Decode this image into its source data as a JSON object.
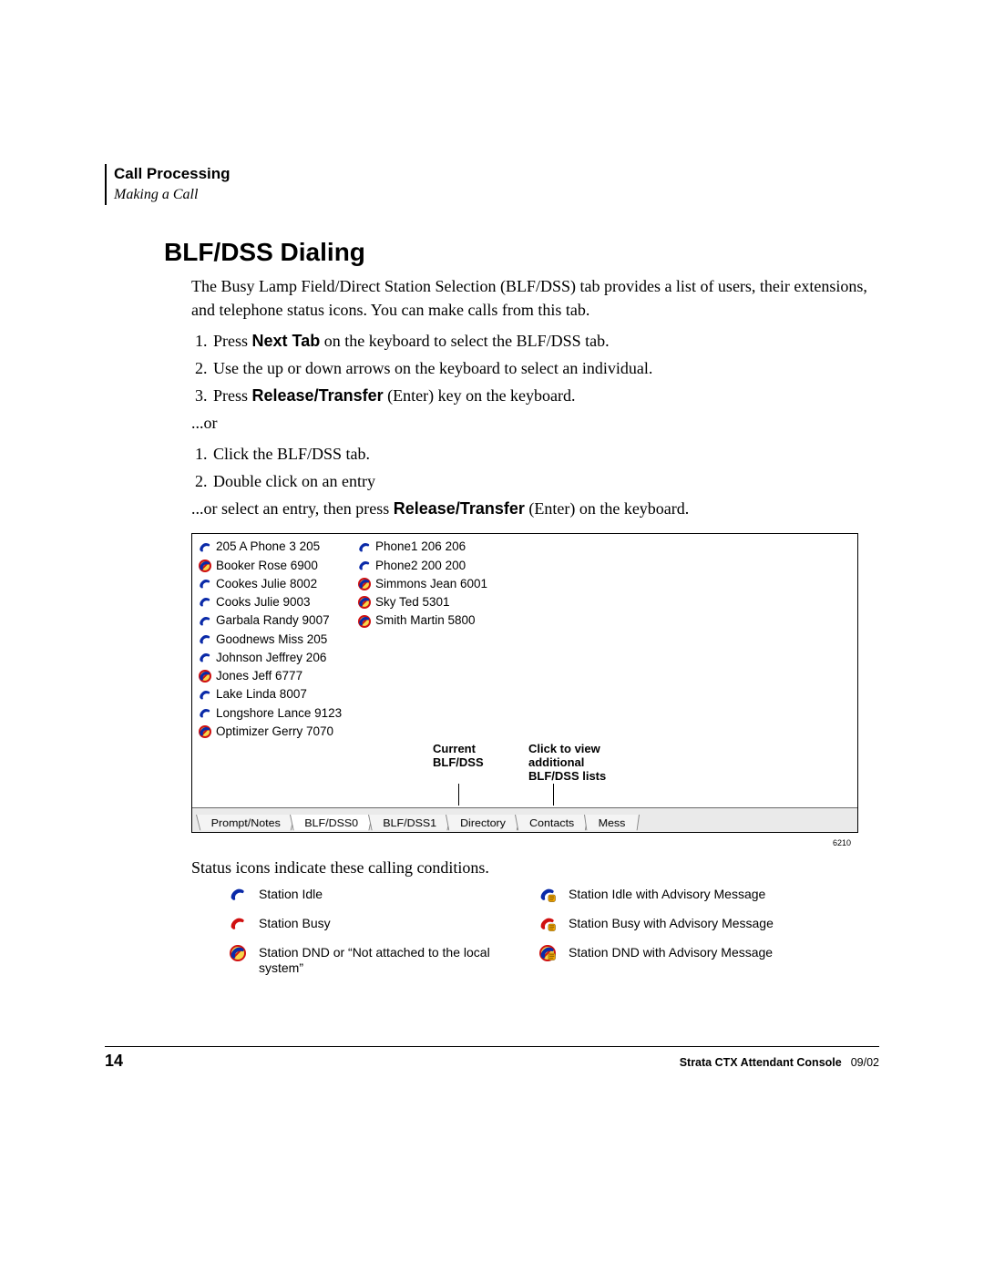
{
  "header": {
    "section": "Call Processing",
    "subsection": "Making a Call"
  },
  "title": "BLF/DSS Dialing",
  "intro": "The Busy Lamp Field/Direct Station Selection (BLF/DSS) tab provides a list of users, their extensions, and telephone status icons. You can make calls from this tab.",
  "steps1": {
    "s1_a": "Press ",
    "s1_b": "Next Tab",
    "s1_c": " on the keyboard to select the BLF/DSS tab.",
    "s2": "Use the up or down arrows on the keyboard to select an individual.",
    "s3_a": "Press ",
    "s3_b": "Release/Transfer",
    "s3_c": " (Enter) key on the keyboard."
  },
  "or_text": "...or",
  "steps2": {
    "s1": "Click the BLF/DSS tab.",
    "s2": "Double click on an entry"
  },
  "or_select_a": "...or select an entry, then press ",
  "or_select_b": "Release/Transfer",
  "or_select_c": " (Enter) on the keyboard.",
  "figure": {
    "col1": [
      {
        "icon": "idle",
        "label": "205 A Phone 3 205"
      },
      {
        "icon": "dnd",
        "label": "Booker Rose 6900"
      },
      {
        "icon": "idle",
        "label": "Cookes Julie 8002"
      },
      {
        "icon": "idle",
        "label": "Cooks Julie 9003"
      },
      {
        "icon": "idle",
        "label": "Garbala Randy 9007"
      },
      {
        "icon": "idle",
        "label": "Goodnews Miss 205"
      },
      {
        "icon": "idle",
        "label": "Johnson Jeffrey 206"
      },
      {
        "icon": "dnd",
        "label": "Jones Jeff 6777"
      },
      {
        "icon": "idle",
        "label": "Lake Linda 8007"
      },
      {
        "icon": "idle",
        "label": "Longshore Lance 9123"
      },
      {
        "icon": "dnd",
        "label": "Optimizer Gerry 7070"
      }
    ],
    "col2": [
      {
        "icon": "idle",
        "label": "Phone1 206 206"
      },
      {
        "icon": "idle",
        "label": "Phone2 200 200"
      },
      {
        "icon": "dnd",
        "label": "Simmons Jean 6001"
      },
      {
        "icon": "dnd",
        "label": "Sky Ted 5301"
      },
      {
        "icon": "dnd",
        "label": "Smith Martin 5800"
      }
    ],
    "callout_current_l1": "Current",
    "callout_current_l2": "BLF/DSS",
    "callout_click_l1": "Click to view",
    "callout_click_l2": "additional",
    "callout_click_l3": "BLF/DSS lists",
    "tabs": [
      "Prompt/Notes",
      "BLF/DSS0",
      "BLF/DSS1",
      "Directory",
      "Contacts",
      "Mess"
    ],
    "active_tab_index": 1,
    "fignum": "6210"
  },
  "status_lead": "Status icons indicate these calling conditions.",
  "legend": {
    "rows": [
      {
        "leftIcon": "idle",
        "left": "Station Idle",
        "rightIcon": "idle_adv",
        "right": "Station Idle with Advisory Message"
      },
      {
        "leftIcon": "busy",
        "left": "Station Busy",
        "rightIcon": "busy_adv",
        "right": "Station Busy with Advisory Message"
      },
      {
        "leftIcon": "dnd",
        "left": "Station DND or “Not attached to the local system”",
        "rightIcon": "dnd_adv",
        "right": "Station DND with Advisory Message"
      }
    ]
  },
  "footer": {
    "page": "14",
    "doc": "Strata CTX Attendant Console",
    "date": "09/02"
  },
  "icons": {
    "idle": {
      "handset": "#0a2aa8",
      "circle": null,
      "badge": null
    },
    "busy": {
      "handset": "#d01010",
      "circle": null,
      "badge": null
    },
    "dnd": {
      "handset": "#0a2aa8",
      "circle": "#d01010",
      "badge": null
    },
    "idle_adv": {
      "handset": "#0a2aa8",
      "circle": null,
      "badge": "#f5a700"
    },
    "busy_adv": {
      "handset": "#d01010",
      "circle": null,
      "badge": "#f5a700"
    },
    "dnd_adv": {
      "handset": "#0a2aa8",
      "circle": "#d01010",
      "badge": "#f5a700"
    }
  }
}
